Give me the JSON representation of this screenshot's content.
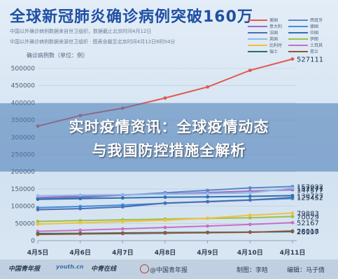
{
  "header": {
    "title": "全球新冠肺炎确诊病例突破160万",
    "notes": [
      "中国以外确诊病例数据来自世卫组织，数据截止北京时间4月12日",
      "中国以外确诊病例数据来源世卫组织 · 图表含截至北京时间4月12日8时04分"
    ]
  },
  "banner": {
    "line1": "实时疫情资讯：全球疫情动态",
    "line2": "与我国防控措施全解析"
  },
  "footer": {
    "logo1": "中国青年报",
    "logo2": "youth.cn",
    "logo3": "中青在线",
    "weibo": "@中国青年报",
    "credit_make": "制图：李晗",
    "credit_edit": "编辑：马子倩"
  },
  "chart_data": {
    "type": "line",
    "title": "全球新冠肺炎确诊病例突破160万",
    "ylabel": "确诊病例数（单位：例）",
    "xlabel": "",
    "categories": [
      "4月5日",
      "4月6日",
      "4月7日",
      "4月8日",
      "4月9日",
      "4月10日",
      "4月11日"
    ],
    "yticks": [
      0,
      50000,
      100000,
      150000,
      200000,
      250000,
      300000,
      350000,
      400000,
      450000,
      500000
    ],
    "ylim": [
      0,
      500000
    ],
    "grid": true,
    "legend_position": "top-right",
    "series": [
      {
        "name": "美国",
        "color": "#e05a4e",
        "values": [
          332308,
          362955,
          384450,
          413951,
          446028,
          494180,
          527111
        ],
        "end_label": "527111"
      },
      {
        "name": "西班牙",
        "color": "#5b86c9",
        "values": [
          122000,
          125000,
          132000,
          139000,
          146000,
          153000,
          157022
        ],
        "end_label": "157022"
      },
      {
        "name": "意大利",
        "color": "#9c6bc2",
        "values": [
          124632,
          128948,
          132547,
          135586,
          139422,
          143626,
          147577
        ],
        "end_label": "147577"
      },
      {
        "name": "德国",
        "color": "#3e8fd6",
        "values": [
          95391,
          99225,
          103228,
          108202,
          113525,
          118181,
          122171
        ],
        "end_label": ""
      },
      {
        "name": "法国",
        "color": "#4a6db3",
        "values": [
          89953,
          92839,
          98010,
          109069,
          112950,
          117749,
          125452
        ],
        "end_label": "125452"
      },
      {
        "name": "中国",
        "color": "#2f6fb0",
        "values": [
          120000,
          122000,
          124000,
          126000,
          127000,
          128500,
          130727
        ],
        "end_label": "130727"
      },
      {
        "name": "英国",
        "color": "#8fb9e6",
        "values": [
          130000,
          132000,
          133500,
          135000,
          136500,
          138500,
          152271
        ],
        "end_label": "152271"
      },
      {
        "name": "伊朗",
        "color": "#9bc24a",
        "values": [
          55743,
          58226,
          60500,
          62589,
          64586,
          66220,
          70029
        ],
        "end_label": "70029"
      },
      {
        "name": "比利时",
        "color": "#f2c13d",
        "values": [
          47806,
          51608,
          55242,
          59105,
          65077,
          73758,
          79883
        ],
        "end_label": "79883"
      },
      {
        "name": "土耳其",
        "color": "#c96fc0",
        "values": [
          27069,
          30217,
          34109,
          38226,
          42282,
          47029,
          52167
        ],
        "end_label": "52167"
      },
      {
        "name": "瑞士",
        "color": "#2d6b6b",
        "values": [
          20489,
          21100,
          22242,
          23280,
          24051,
          24900,
          26107
        ],
        "end_label": "26107"
      },
      {
        "name": "荷兰",
        "color": "#8a5a3c",
        "values": [
          17851,
          19580,
          20549,
          21762,
          23097,
          24413,
          28018
        ],
        "end_label": "28018"
      }
    ]
  }
}
